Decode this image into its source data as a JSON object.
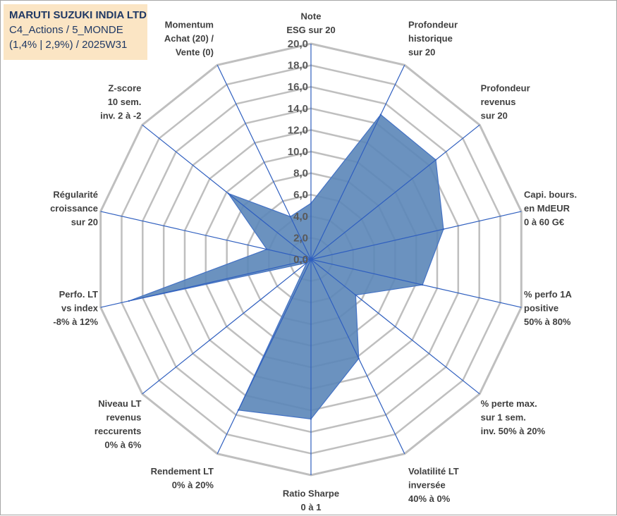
{
  "title_box": {
    "line1": "MARUTI SUZUKI INDIA LTD",
    "line2": "C4_Actions / 5_MONDE",
    "line3": "(1,4% | 2,9%) / 2025W31"
  },
  "chart_data": {
    "type": "radar",
    "title": "MARUTI SUZUKI INDIA LTD",
    "rlim": [
      0,
      20
    ],
    "ticks": [
      "0,0",
      "2,0",
      "4,0",
      "6,0",
      "8,0",
      "10,0",
      "12,0",
      "14,0",
      "16,0",
      "18,0",
      "20,0"
    ],
    "grid": true,
    "categories": [
      [
        "Note",
        "ESG sur 20"
      ],
      [
        "Profondeur",
        "historique",
        "sur 20"
      ],
      [
        "Profondeur",
        "revenus",
        "sur 20"
      ],
      [
        "Capi. bours.",
        "en MdEUR",
        "0 à 60 G€"
      ],
      [
        "% perfo 1A",
        "positive",
        "50% à 80%"
      ],
      [
        "% perte max.",
        "sur 1 sem.",
        "inv. 50% à 20%"
      ],
      [
        "Volatilité LT",
        "inversée",
        "40% à 0%"
      ],
      [
        "Ratio Sharpe",
        "0 à 1"
      ],
      [
        "Rendement LT",
        "0% à 20%"
      ],
      [
        "Niveau LT",
        "revenus",
        "reccurents",
        "0% à 6%"
      ],
      [
        "Perfo. LT",
        "vs index",
        "-8% à 12%"
      ],
      [
        "Régularité",
        "croissance",
        "sur 20"
      ],
      [
        "Z-score",
        "10 sem.",
        "inv. 2 à -2"
      ],
      [
        "Momentum",
        "Achat (20) /",
        "Vente (0)"
      ]
    ],
    "series": [
      {
        "values": [
          5.2,
          14.9,
          14.8,
          12.6,
          10.6,
          5.3,
          10.2,
          14.8,
          15.5,
          0.5,
          17.3,
          4.2,
          9.8,
          4.4
        ]
      }
    ],
    "colors": {
      "fill": "#5b86b8",
      "line": "#4472c4",
      "grid": "#bfbfbf",
      "spoke": "#2f5fbf",
      "title_bg": "#fbe5c4",
      "title_text": "#1f3864"
    }
  }
}
